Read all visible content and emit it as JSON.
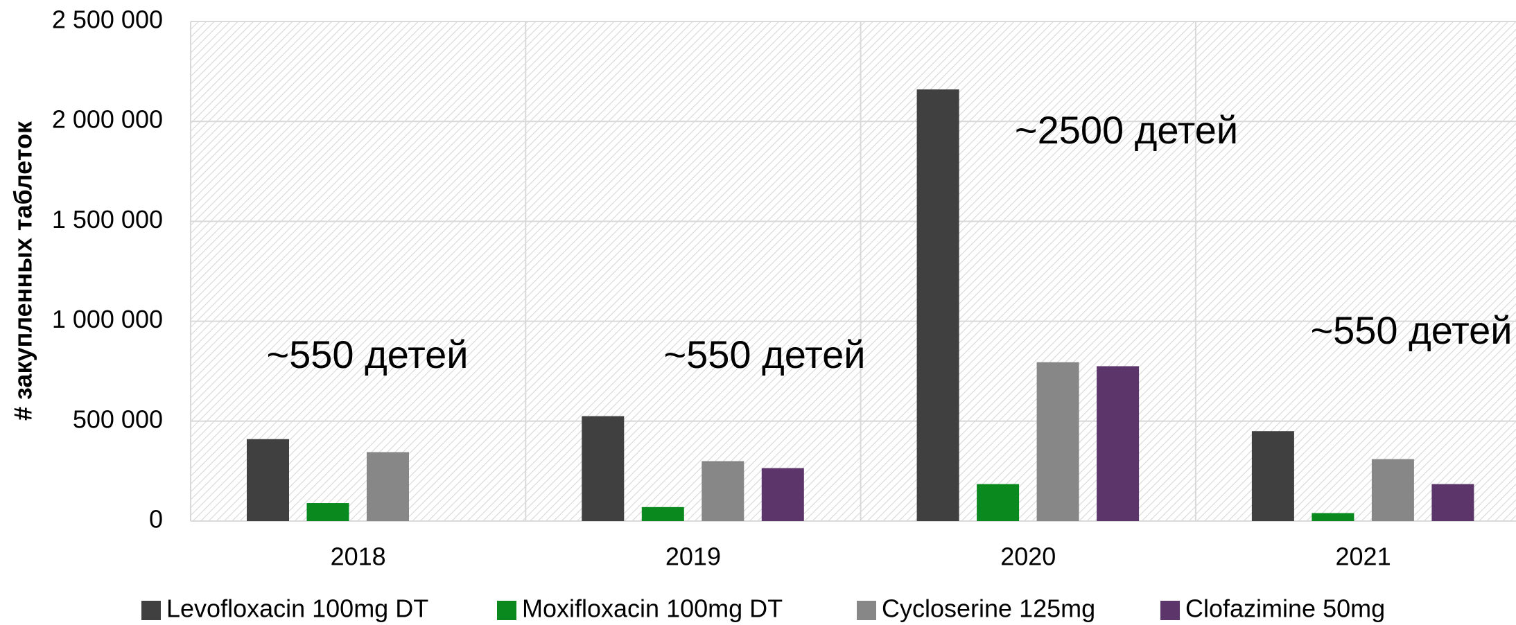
{
  "chart_data": {
    "type": "bar",
    "y_axis_label": "# закупленных таблеток",
    "categories": [
      "2018",
      "2019",
      "2020",
      "2021"
    ],
    "series": [
      {
        "name": "Levofloxacin 100mg DT",
        "color": "#404040",
        "values": [
          410000,
          525000,
          2160000,
          450000
        ]
      },
      {
        "name": "Moxifloxacin 100mg DT",
        "color": "#0a8a1e",
        "values": [
          90000,
          70000,
          185000,
          40000
        ]
      },
      {
        "name": "Cycloserine 125mg",
        "color": "#878787",
        "values": [
          345000,
          300000,
          795000,
          310000
        ]
      },
      {
        "name": "Clofazimine 50mg",
        "color": "#5c356b",
        "values": [
          null,
          265000,
          775000,
          185000
        ]
      }
    ],
    "annotations": [
      "~550 детей",
      "~550 детей",
      "~2500 детей",
      "~550 детей"
    ],
    "ylim": [
      0,
      2500000
    ],
    "yticks": [
      0,
      {
        "value": 500000,
        "label": "500 000"
      },
      {
        "value": 1000000,
        "label": "1 000 000"
      },
      {
        "value": 1500000,
        "label": "1 500 000"
      },
      {
        "value": 2000000,
        "label": "2 000 000"
      },
      {
        "value": 2500000,
        "label": "2 500 000"
      }
    ],
    "grid": true,
    "legend": "bottom"
  }
}
